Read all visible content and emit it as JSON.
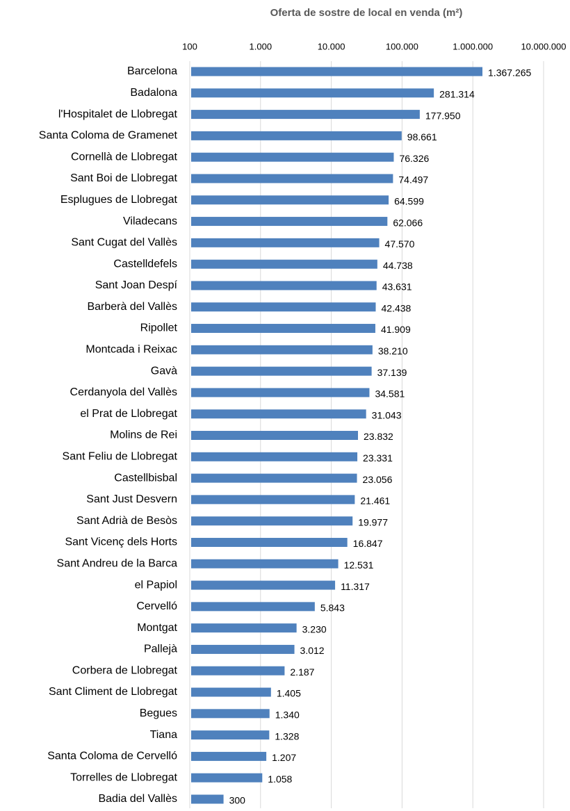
{
  "chart_data": {
    "type": "bar",
    "orientation": "horizontal",
    "title": "Oferta de sostre de local en venda (m²)",
    "categories": [
      "Barcelona",
      "Badalona",
      "l'Hospitalet de Llobregat",
      "Santa Coloma de Gramenet",
      "Cornellà de Llobregat",
      "Sant Boi de Llobregat",
      "Esplugues de Llobregat",
      "Viladecans",
      "Sant Cugat del Vallès",
      "Castelldefels",
      "Sant Joan Despí",
      "Barberà del Vallès",
      "Ripollet",
      "Montcada i Reixac",
      "Gavà",
      "Cerdanyola del Vallès",
      "el Prat de Llobregat",
      "Molins de Rei",
      "Sant Feliu de Llobregat",
      "Castellbisbal",
      "Sant Just Desvern",
      "Sant Adrià de Besòs",
      "Sant Vicenç dels Horts",
      "Sant Andreu de la Barca",
      "el Papiol",
      "Cervelló",
      "Montgat",
      "Pallejà",
      "Corbera de Llobregat",
      "Sant Climent de Llobregat",
      "Begues",
      "Tiana",
      "Santa Coloma de Cervelló",
      "Torrelles de Llobregat",
      "Badia del Vallès"
    ],
    "values": [
      1367265,
      281314,
      177950,
      98661,
      76326,
      74497,
      64599,
      62066,
      47570,
      44738,
      43631,
      42438,
      41909,
      38210,
      37139,
      34581,
      31043,
      23832,
      23331,
      23056,
      21461,
      19977,
      16847,
      12531,
      11317,
      5843,
      3230,
      3012,
      2187,
      1405,
      1340,
      1328,
      1207,
      1058,
      300
    ],
    "value_labels": [
      "1.367.265",
      "281.314",
      "177.950",
      "98.661",
      "76.326",
      "74.497",
      "64.599",
      "62.066",
      "47.570",
      "44.738",
      "43.631",
      "42.438",
      "41.909",
      "38.210",
      "37.139",
      "34.581",
      "31.043",
      "23.832",
      "23.331",
      "23.056",
      "21.461",
      "19.977",
      "16.847",
      "12.531",
      "11.317",
      "5.843",
      "3.230",
      "3.012",
      "2.187",
      "1.405",
      "1.340",
      "1.328",
      "1.207",
      "1.058",
      "300"
    ],
    "color": "#4f81bd",
    "xscale": "log",
    "xlim": [
      100,
      10000000
    ],
    "xticks": [
      100,
      {
        "value": 1000,
        "label": "1.000"
      },
      {
        "value": 10000,
        "label": "10.000"
      },
      {
        "value": 100000,
        "label": "100.000"
      },
      {
        "value": 1000000,
        "label": "1.000.000"
      },
      {
        "value": 10000000,
        "label": "10.000.000"
      }
    ],
    "grid": true
  }
}
